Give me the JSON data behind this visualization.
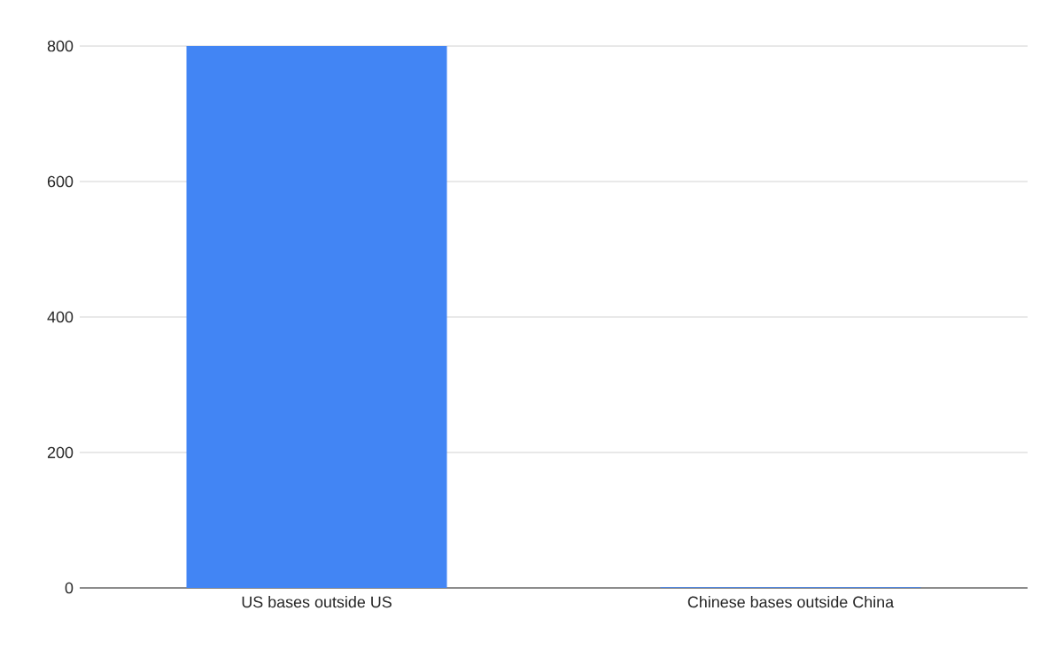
{
  "chart_data": {
    "type": "bar",
    "categories": [
      "US bases outside US",
      "Chinese bases outside China"
    ],
    "values": [
      800,
      1
    ],
    "color": "#4285f4",
    "ylim": [
      0,
      800
    ],
    "yticks": [
      0,
      200,
      400,
      600,
      800
    ],
    "grid": "y"
  }
}
